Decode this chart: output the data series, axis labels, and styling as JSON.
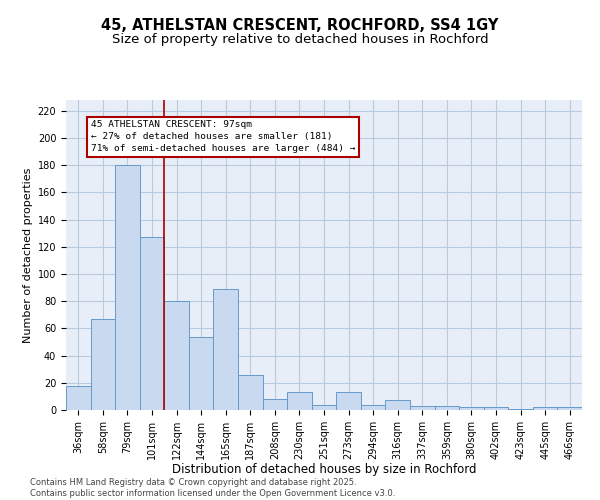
{
  "title": "45, ATHELSTAN CRESCENT, ROCHFORD, SS4 1GY",
  "subtitle": "Size of property relative to detached houses in Rochford",
  "xlabel": "Distribution of detached houses by size in Rochford",
  "ylabel": "Number of detached properties",
  "categories": [
    "36sqm",
    "58sqm",
    "79sqm",
    "101sqm",
    "122sqm",
    "144sqm",
    "165sqm",
    "187sqm",
    "208sqm",
    "230sqm",
    "251sqm",
    "273sqm",
    "294sqm",
    "316sqm",
    "337sqm",
    "359sqm",
    "380sqm",
    "402sqm",
    "423sqm",
    "445sqm",
    "466sqm"
  ],
  "values": [
    18,
    67,
    180,
    127,
    80,
    54,
    89,
    26,
    8,
    13,
    4,
    13,
    4,
    7,
    3,
    3,
    2,
    2,
    1,
    2,
    2
  ],
  "bar_color": "#c9daf0",
  "bar_edge_color": "#6699cc",
  "annotation_line1": "45 ATHELSTAN CRESCENT: 97sqm",
  "annotation_line2": "← 27% of detached houses are smaller (181)",
  "annotation_line3": "71% of semi-detached houses are larger (484) →",
  "vline_index": 3,
  "vline_color": "#aa0000",
  "annotation_box_edgecolor": "#aa0000",
  "ylim": [
    0,
    228
  ],
  "yticks": [
    0,
    20,
    40,
    60,
    80,
    100,
    120,
    140,
    160,
    180,
    200,
    220
  ],
  "grid_color": "#b8cadf",
  "background_color": "#e8eef8",
  "footer": "Contains HM Land Registry data © Crown copyright and database right 2025.\nContains public sector information licensed under the Open Government Licence v3.0.",
  "title_fontsize": 10.5,
  "subtitle_fontsize": 9.5,
  "xlabel_fontsize": 8.5,
  "ylabel_fontsize": 8,
  "tick_fontsize": 7,
  "annotation_fontsize": 6.8,
  "footer_fontsize": 6
}
